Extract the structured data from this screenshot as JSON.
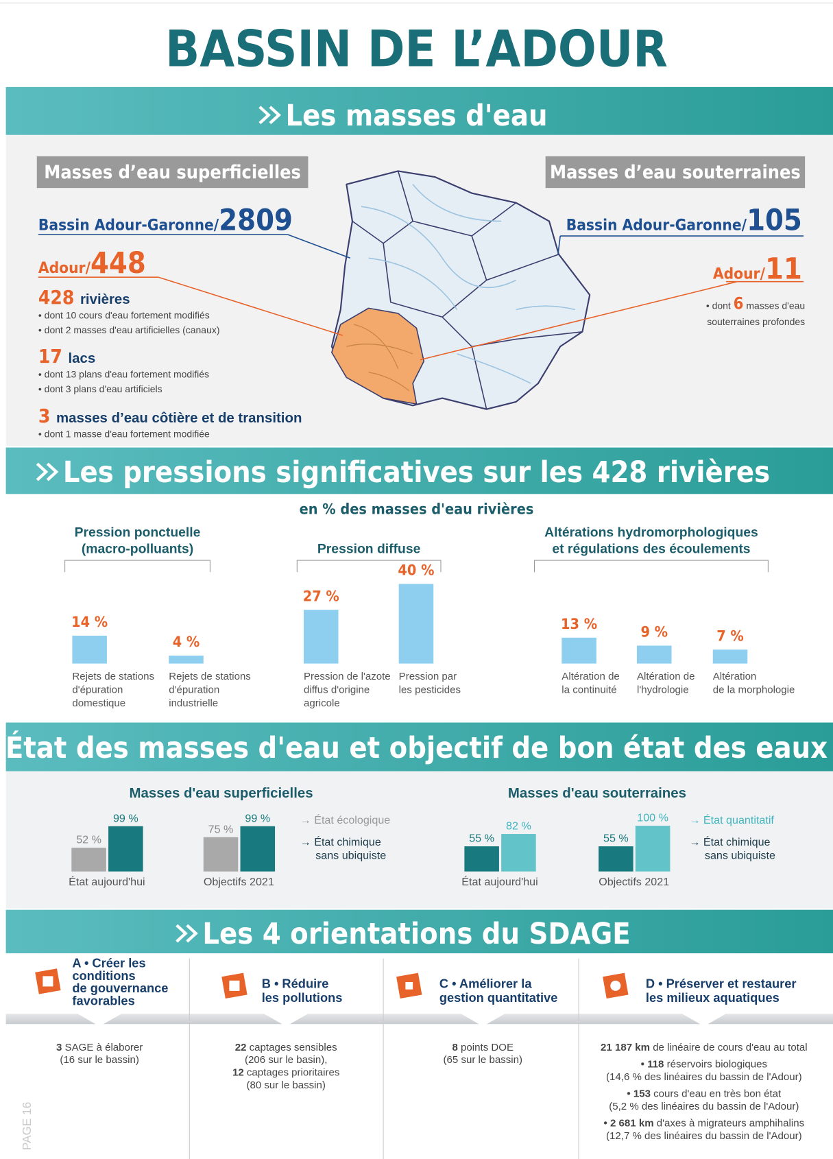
{
  "title": "BASSIN DE L’ADOUR",
  "page_label": "PAGE 16",
  "masses": {
    "heading": "Les masses d'eau",
    "surface": {
      "label": "Masses d’eau superficielles",
      "basin_label": "Bassin Adour-Garonne/",
      "basin_value": 2809,
      "adour_label": "Adour/",
      "adour_value": 448,
      "items": [
        {
          "count": 428,
          "label": "rivières",
          "notes": [
            "• dont 10 cours d'eau fortement modifiés",
            "• dont 2 masses d'eau artificielles (canaux)"
          ]
        },
        {
          "count": 17,
          "label": "lacs",
          "notes": [
            "• dont 13 plans d'eau fortement modifiés",
            "• dont 3 plans d'eau artificiels"
          ]
        },
        {
          "count": 3,
          "label": "masses d’eau côtière et de transition",
          "notes": [
            "• dont 1 masse d'eau fortement modifiée"
          ]
        }
      ]
    },
    "ground": {
      "label": "Masses d’eau souterraines",
      "basin_label": "Bassin Adour-Garonne/",
      "basin_value": 105,
      "adour_label": "Adour/",
      "adour_value": 11,
      "note": {
        "prefix": "• dont ",
        "count": 6,
        "suffix": " masses d'eau",
        "line2": "souterraines profondes"
      }
    }
  },
  "pressions": {
    "heading": "Les pressions significatives sur les 428 rivières",
    "subtitle": "en % des masses d'eau rivières",
    "groups": [
      {
        "title": [
          "Pression ponctuelle",
          "(macro-polluants)"
        ],
        "bars": [
          {
            "value": 14,
            "value_label": "14 %",
            "caption": [
              "Rejets de stations",
              "d'épuration",
              "domestique"
            ]
          },
          {
            "value": 4,
            "value_label": "4 %",
            "caption": [
              "Rejets de stations",
              "d'épuration",
              "industrielle"
            ]
          }
        ]
      },
      {
        "title": [
          "Pression diffuse"
        ],
        "bars": [
          {
            "value": 27,
            "value_label": "27 %",
            "caption": [
              "Pression de l'azote",
              "diffus d'origine",
              "agricole"
            ]
          },
          {
            "value": 40,
            "value_label": "40 %",
            "caption": [
              "Pression par",
              "les pesticides"
            ]
          }
        ]
      },
      {
        "title": [
          "Altérations hydromorphologiques",
          "et régulations des écoulements"
        ],
        "bars": [
          {
            "value": 13,
            "value_label": "13 %",
            "caption": [
              "Altération de",
              "la continuité"
            ]
          },
          {
            "value": 9,
            "value_label": "9 %",
            "caption": [
              "Altération de",
              "l'hydrologie"
            ]
          },
          {
            "value": 7,
            "value_label": "7 %",
            "caption": [
              "Altération",
              "de la morphologie"
            ]
          }
        ]
      }
    ]
  },
  "etat": {
    "heading": "État des masses d'eau et objectif de bon état des eaux",
    "groups": [
      {
        "title": "Masses d'eau superficielles",
        "colors": [
          "#a9a9a9",
          "#187a7e"
        ],
        "legend": [
          [
            "→ État écologique"
          ],
          [
            "→ État chimique",
            "sans ubiquiste"
          ]
        ],
        "pairs": [
          {
            "caption": "État aujourd'hui",
            "values": [
              52,
              99
            ],
            "value_labels": [
              "52 %",
              "99 %"
            ]
          },
          {
            "caption": "Objectifs 2021",
            "values": [
              75,
              99
            ],
            "value_labels": [
              "75 %",
              "99 %"
            ]
          }
        ]
      },
      {
        "title": "Masses d'eau souterraines",
        "colors": [
          "#187a7e",
          "#62c3c9"
        ],
        "legend": [
          [
            "→ État quantitatif"
          ],
          [
            "→ État chimique",
            "sans ubiquiste"
          ]
        ],
        "pairs": [
          {
            "caption": "État aujourd'hui",
            "values": [
              55,
              82
            ],
            "value_labels": [
              "55 %",
              "82 %"
            ]
          },
          {
            "caption": "Objectifs 2021",
            "values": [
              55,
              100
            ],
            "value_labels": [
              "55 %",
              "100 %"
            ]
          }
        ]
      }
    ]
  },
  "orientations": {
    "heading": "Les 4 orientations du SDAGE",
    "columns": [
      {
        "title": [
          "A • Créer les",
          "conditions",
          "de gouvernance",
          "favorables"
        ],
        "body": [
          [
            {
              "b": "3"
            },
            {
              "t": " SAGE à élaborer"
            }
          ],
          [
            {
              "t": "(16 sur le bassin)"
            }
          ]
        ]
      },
      {
        "title": [
          "B • Réduire",
          "les pollutions"
        ],
        "body": [
          [
            {
              "b": "22"
            },
            {
              "t": " captages sensibles"
            }
          ],
          [
            {
              "t": "(206 sur le basin),"
            }
          ],
          [
            {
              "b": "12"
            },
            {
              "t": " captages prioritaires"
            }
          ],
          [
            {
              "t": "(80 sur le bassin)"
            }
          ]
        ]
      },
      {
        "title": [
          "C • Améliorer la",
          "gestion quantitative"
        ],
        "body": [
          [
            {
              "b": "8"
            },
            {
              "t": " points DOE"
            }
          ],
          [
            {
              "t": "(65 sur le bassin)"
            }
          ]
        ]
      },
      {
        "title": [
          "D • Préserver et restaurer",
          "les milieux aquatiques"
        ],
        "body": [
          [
            {
              "b": "21 187 km"
            },
            {
              "t": " de linéaire de cours d'eau au total"
            }
          ],
          [
            {
              "b": "• 118"
            },
            {
              "t": " réservoirs biologiques"
            }
          ],
          [
            {
              "t": "(14,6 % des linéaires du bassin de l'Adour)"
            }
          ],
          [
            {
              "b": "• 153"
            },
            {
              "t": " cours d'eau en très bon état"
            }
          ],
          [
            {
              "t": "(5,2 % des linéaires du bassin de l'Adour)"
            }
          ],
          [
            {
              "b": "• 2 681 km"
            },
            {
              "t": " d'axes à migrateurs amphihalins"
            }
          ],
          [
            {
              "t": "(12,7 % des linéaires du bassin de l'Adour)"
            }
          ]
        ]
      }
    ]
  }
}
